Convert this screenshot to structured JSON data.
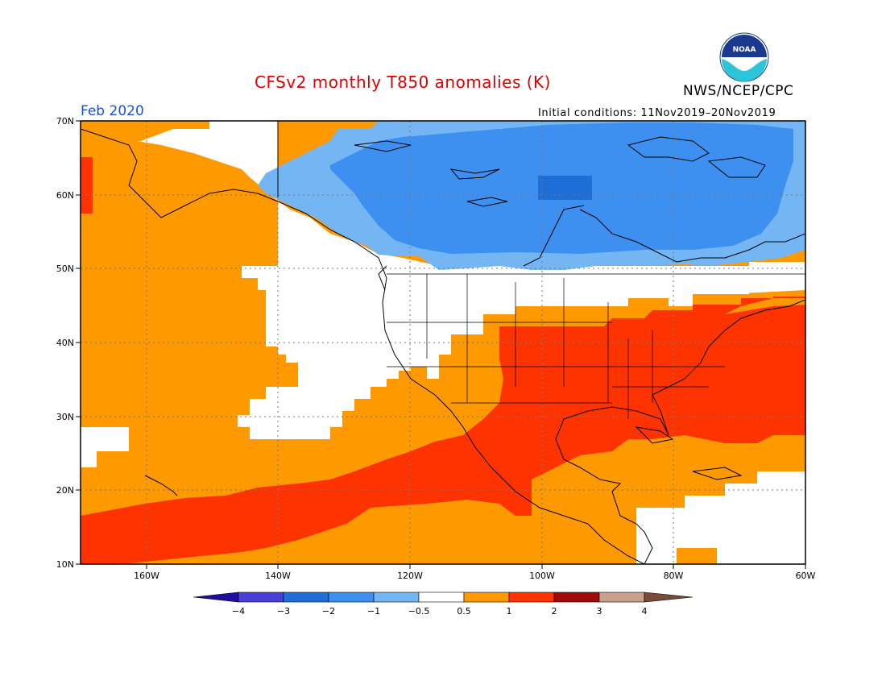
{
  "header": {
    "title": "CFSv2 monthly T850 anomalies (K)",
    "org": "NWS/NCEP/CPC",
    "logo_text": "NOAA",
    "month": "Feb 2020",
    "initial_conditions": "Initial conditions: 11Nov2019–20Nov2019"
  },
  "map": {
    "projection": "cylindrical equidistant",
    "lat_labels": [
      "70N",
      "60N",
      "50N",
      "40N",
      "30N",
      "20N",
      "10N"
    ],
    "lon_labels": [
      "160W",
      "140W",
      "120W",
      "100W",
      "80W",
      "60W"
    ],
    "region": "North America / Eastern Pacific",
    "gridlines": "dotted"
  },
  "colorbar": {
    "labels": [
      "−4",
      "−3",
      "−2",
      "−1",
      "−0.5",
      "0.5",
      "1",
      "2",
      "3",
      "4"
    ],
    "colors": [
      "#1e0ea0",
      "#4a3ed8",
      "#1f6ed8",
      "#3d8ff0",
      "#74b5f4",
      "#ffffff",
      "#ff9900",
      "#ff3300",
      "#a00a0a",
      "#c8a08c",
      "#7a4a3a"
    ]
  }
}
